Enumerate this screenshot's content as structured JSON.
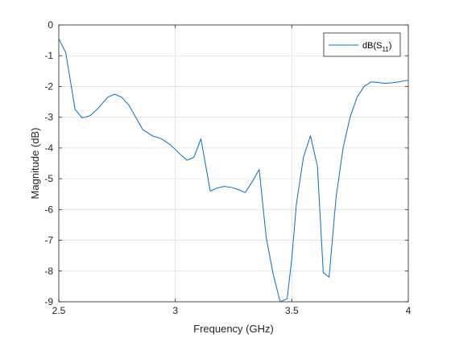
{
  "chart_data": {
    "type": "line",
    "title": "",
    "xlabel": "Frequency (GHz)",
    "ylabel": "Magnitude (dB)",
    "xlim": [
      2.5,
      4
    ],
    "ylim": [
      -9,
      0
    ],
    "x_ticks": [
      2.5,
      3,
      3.5,
      4
    ],
    "x_tick_labels": [
      "2.5",
      "3",
      "3.5",
      "4"
    ],
    "y_ticks": [
      0,
      -1,
      -2,
      -3,
      -4,
      -5,
      -6,
      -7,
      -8,
      -9
    ],
    "y_tick_labels": [
      "0",
      "-1",
      "-2",
      "-3",
      "-4",
      "-5",
      "-6",
      "-7",
      "-8",
      "-9"
    ],
    "grid": true,
    "legend_position": "top-right",
    "colors": {
      "series": "#0072bd",
      "grid": "#dfdfdf",
      "axis": "#262626"
    },
    "series": [
      {
        "name": "dB(S11)",
        "legend_main": "dB(S",
        "legend_sub": "11",
        "legend_close": ")",
        "x": [
          2.5,
          2.53,
          2.57,
          2.6,
          2.635,
          2.67,
          2.71,
          2.74,
          2.77,
          2.8,
          2.83,
          2.86,
          2.9,
          2.94,
          2.98,
          3.02,
          3.05,
          3.08,
          3.11,
          3.15,
          3.18,
          3.21,
          3.24,
          3.27,
          3.3,
          3.33,
          3.36,
          3.39,
          3.42,
          3.45,
          3.48,
          3.5,
          3.52,
          3.55,
          3.58,
          3.61,
          3.635,
          3.66,
          3.69,
          3.72,
          3.75,
          3.78,
          3.81,
          3.84,
          3.87,
          3.9,
          3.93,
          3.96,
          3.98,
          4.0
        ],
        "y": [
          -0.45,
          -0.9,
          -2.75,
          -3.02,
          -2.95,
          -2.7,
          -2.35,
          -2.25,
          -2.35,
          -2.6,
          -3.0,
          -3.4,
          -3.6,
          -3.7,
          -3.9,
          -4.2,
          -4.4,
          -4.3,
          -3.7,
          -5.4,
          -5.3,
          -5.25,
          -5.28,
          -5.35,
          -5.45,
          -5.1,
          -4.7,
          -6.9,
          -8.1,
          -9.0,
          -8.9,
          -7.6,
          -5.8,
          -4.3,
          -3.6,
          -4.6,
          -8.05,
          -8.2,
          -5.6,
          -4.0,
          -3.0,
          -2.35,
          -2.0,
          -1.85,
          -1.87,
          -1.9,
          -1.88,
          -1.85,
          -1.82,
          -1.8
        ]
      }
    ]
  }
}
